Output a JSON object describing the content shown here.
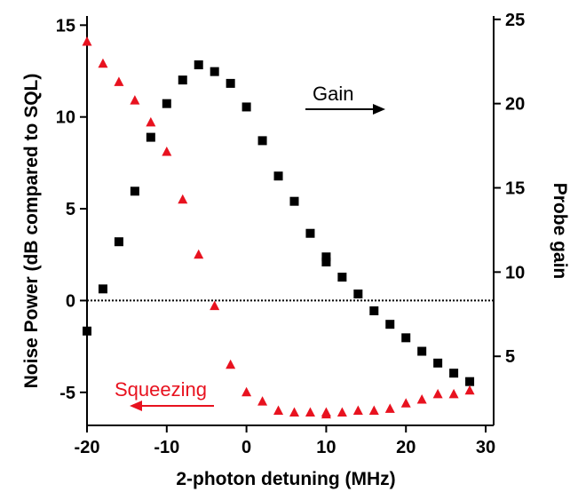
{
  "chart_data": {
    "type": "scatter",
    "xlabel": "2-photon detuning (MHz)",
    "ylabel_left": "Noise Power (dB compared to SQL)",
    "ylabel_right": "Probe gain",
    "xlim": [
      -20,
      31
    ],
    "ylim_left": [
      -6.8,
      15.5
    ],
    "ylim_right": [
      0.9,
      25.2
    ],
    "x_ticks": [
      "-20",
      "-10",
      "0",
      "10",
      "20",
      "30"
    ],
    "y_ticks_left": [
      "-5",
      "0",
      "5",
      "10",
      "15"
    ],
    "y_ticks_right": [
      "5",
      "10",
      "15",
      "20",
      "25"
    ],
    "reference_line": {
      "y": 0,
      "style": "dotted"
    },
    "grid": false,
    "annotations": {
      "gain_label": "Gain",
      "squeezing_label": "Squeezing"
    },
    "colors": {
      "noise": "#e8121f",
      "gain": "#000000"
    },
    "series": [
      {
        "name": "Noise Power",
        "axis": "left",
        "marker": "triangle",
        "x": [
          -20,
          -18,
          -16,
          -14,
          -12,
          -10,
          -8,
          -6,
          -4,
          -2,
          0,
          2,
          4,
          6,
          8,
          10,
          10,
          12,
          14,
          16,
          18,
          20,
          22,
          24,
          26,
          28
        ],
        "y": [
          14.1,
          12.9,
          11.9,
          10.9,
          9.7,
          8.1,
          5.5,
          2.5,
          -0.3,
          -3.5,
          -5.0,
          -5.5,
          -6.0,
          -6.1,
          -6.1,
          -6.1,
          -6.2,
          -6.1,
          -6.0,
          -6.0,
          -5.9,
          -5.6,
          -5.4,
          -5.1,
          -5.1,
          -4.9
        ]
      },
      {
        "name": "Probe gain",
        "axis": "right",
        "marker": "square",
        "x": [
          -20,
          -18,
          -16,
          -14,
          -12,
          -10,
          -8,
          -6,
          -4,
          -2,
          0,
          2,
          4,
          6,
          8,
          10,
          10,
          12,
          14,
          16,
          18,
          20,
          22,
          24,
          26,
          28
        ],
        "y": [
          6.5,
          9.0,
          11.8,
          14.8,
          18.0,
          20.0,
          21.4,
          22.3,
          21.9,
          21.2,
          19.8,
          17.8,
          15.7,
          14.2,
          12.3,
          10.9,
          10.6,
          9.7,
          8.7,
          7.7,
          6.9,
          6.1,
          5.3,
          4.6,
          4.0,
          3.5
        ]
      }
    ]
  }
}
